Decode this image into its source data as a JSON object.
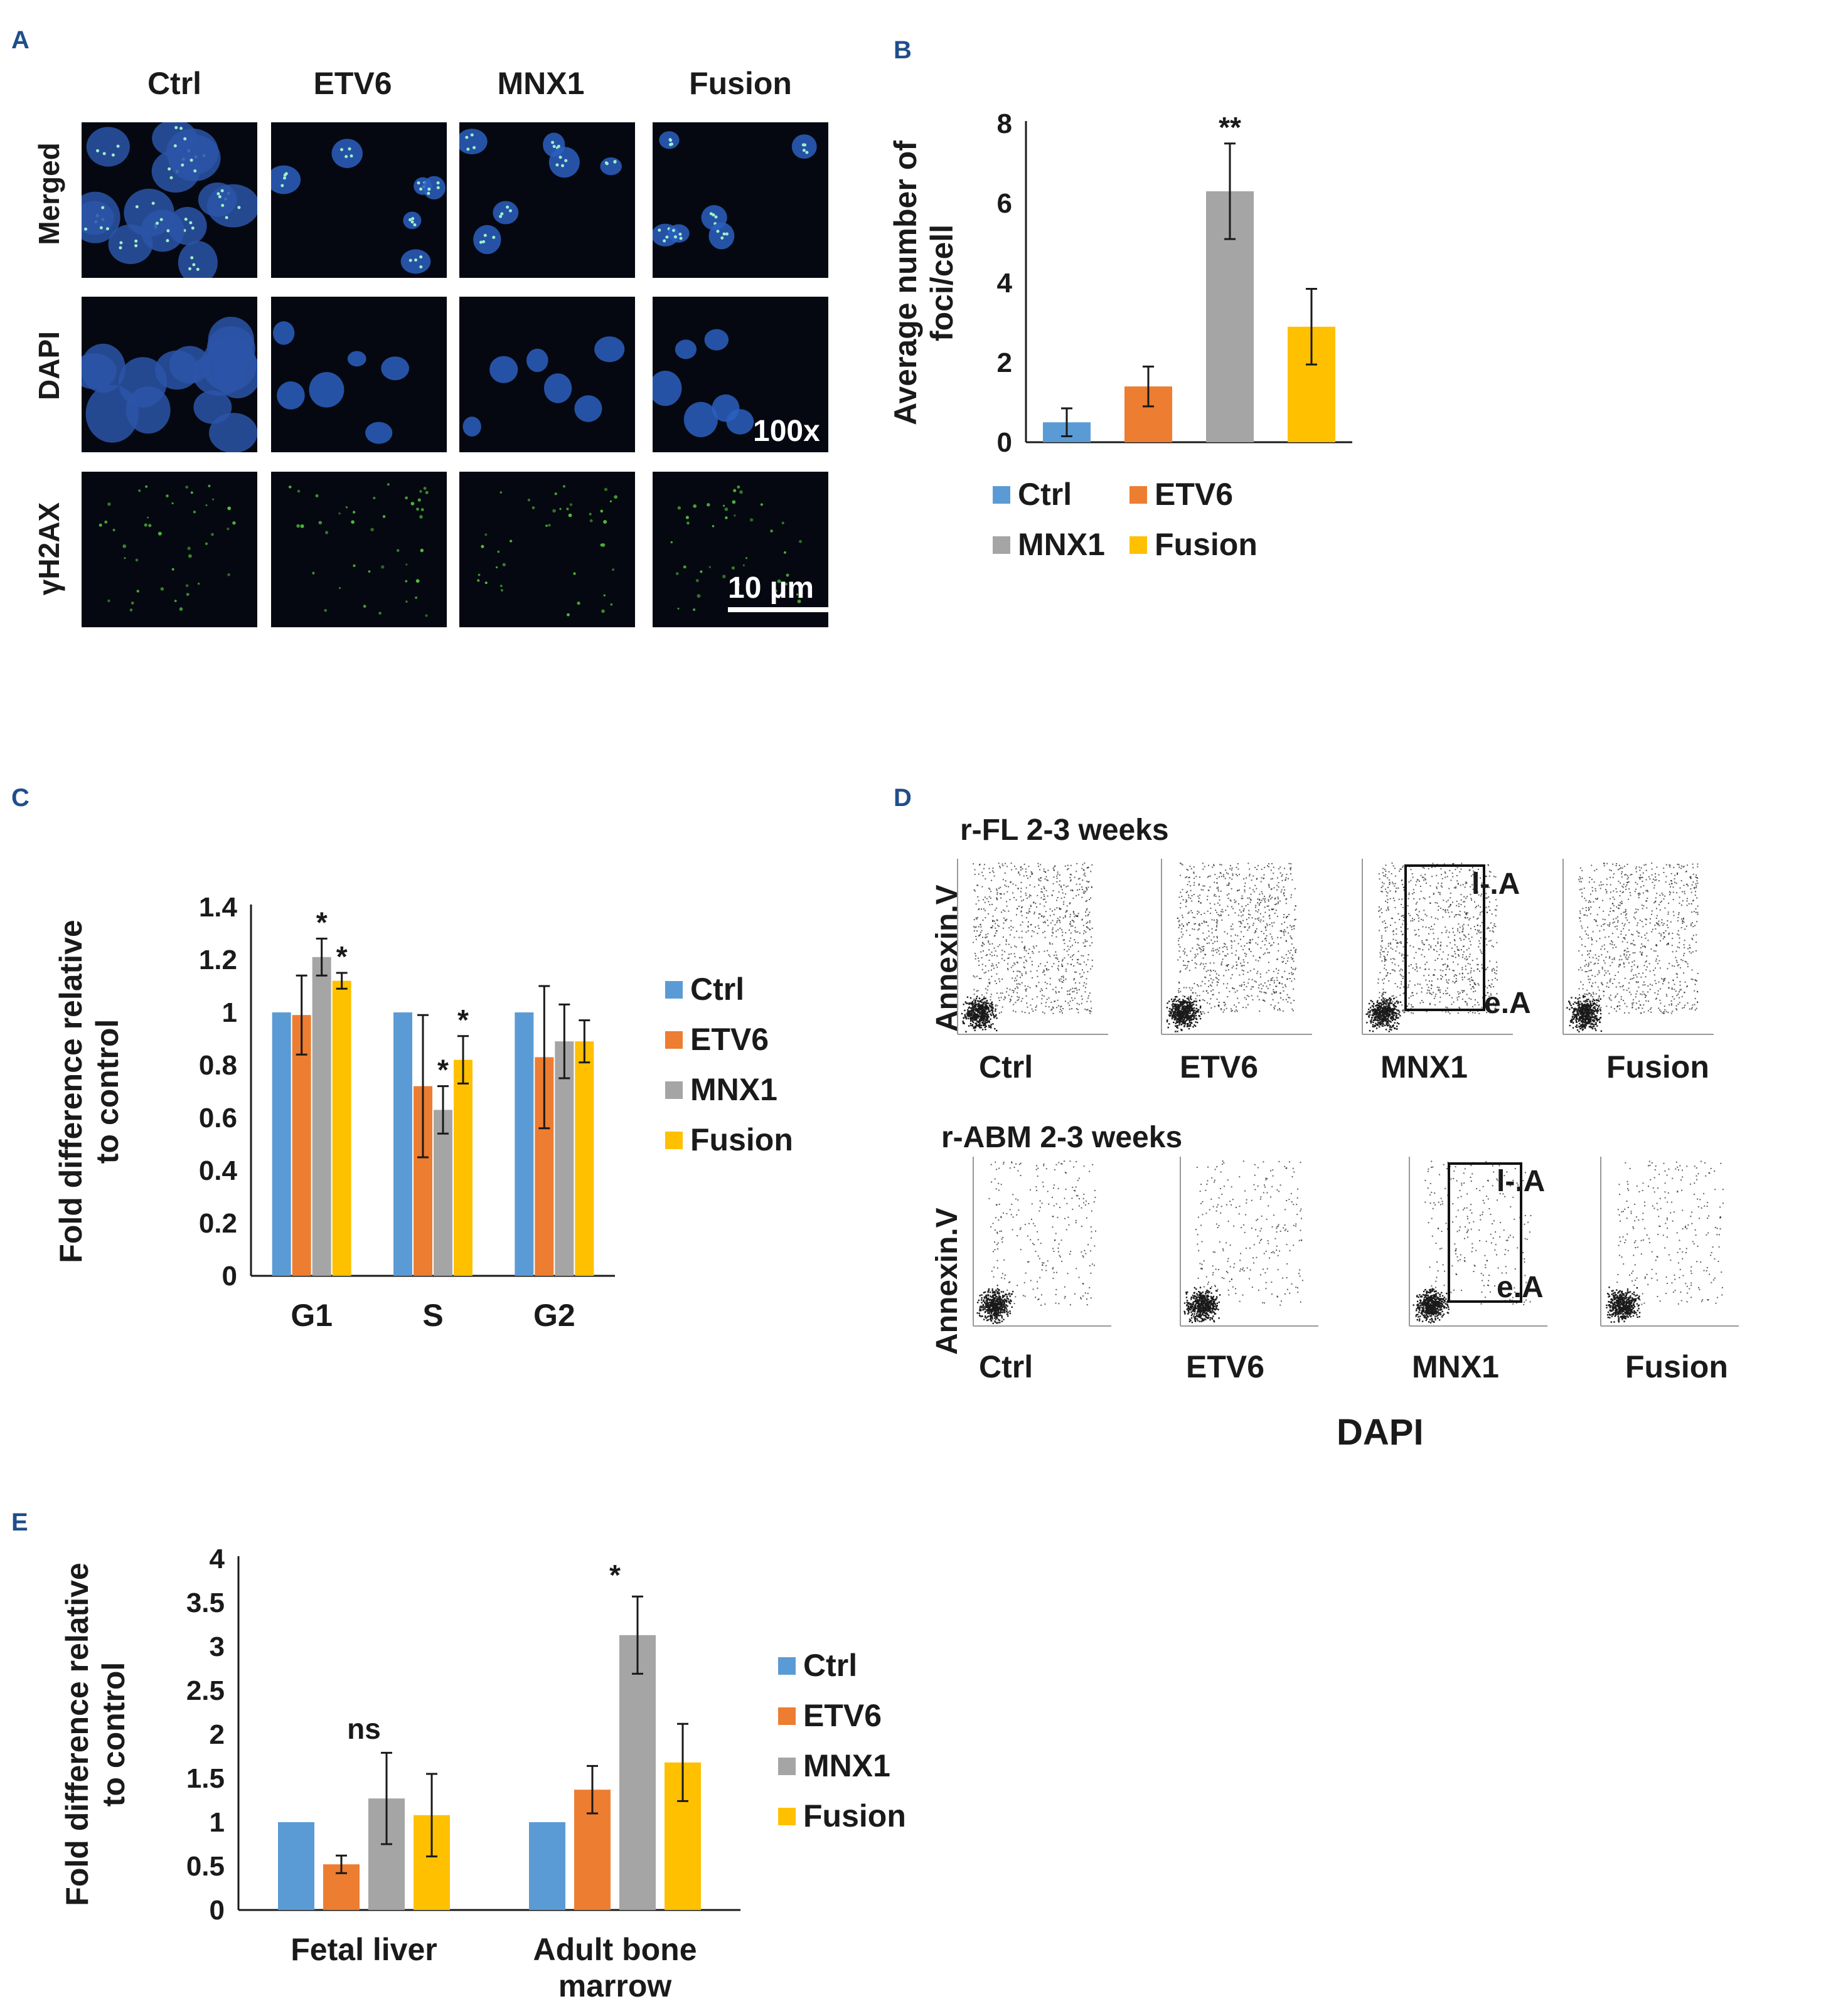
{
  "panels": {
    "A": {
      "letter": "A",
      "columns": [
        "Ctrl",
        "ETV6",
        "MNX1",
        "Fusion"
      ],
      "rows": [
        "Merged",
        "DAPI",
        "γH2AX"
      ],
      "magnification": "100x",
      "scale_bar": "10 µm"
    },
    "B": {
      "letter": "B"
    },
    "C": {
      "letter": "C"
    },
    "D": {
      "letter": "D",
      "top_title": "r-FL 2-3 weeks",
      "bottom_title": "r-ABM 2-3 weeks",
      "y_label": "Annexin.V",
      "x_label": "DAPI",
      "top_samples": [
        "Ctrl",
        "ETV6",
        "MNX1",
        "Fusion"
      ],
      "bottom_samples": [
        "Ctrl",
        "ETV6",
        "MNX1",
        "Fusion"
      ],
      "gate_late": "l-.A",
      "gate_early": "e.A"
    },
    "E": {
      "letter": "E"
    }
  },
  "colors": {
    "Ctrl": "#5b9bd5",
    "ETV6": "#ed7d31",
    "MNX1": "#a5a5a5",
    "Fusion": "#ffc000"
  },
  "chart_data": [
    {
      "id": "B",
      "type": "bar",
      "categories": [
        "Ctrl",
        "ETV6",
        "MNX1",
        "Fusion"
      ],
      "values": [
        0.5,
        1.4,
        6.3,
        2.9
      ],
      "errors": [
        0.35,
        0.5,
        1.2,
        0.95
      ],
      "annotations": [
        "",
        "",
        "**",
        ""
      ],
      "ylabel": "Average number of foci/cell",
      "ylabel_lines": [
        "Average number of",
        "foci/cell"
      ],
      "ylim": [
        0,
        8
      ],
      "yticks": [
        "0",
        "2",
        "4",
        "6",
        "8"
      ],
      "legend": [
        "Ctrl",
        "ETV6",
        "MNX1",
        "Fusion"
      ],
      "legend_position": "bottom"
    },
    {
      "id": "C",
      "type": "bar",
      "categories": [
        "G1",
        "S",
        "G2"
      ],
      "series": [
        {
          "name": "Ctrl",
          "values": [
            1.0,
            1.0,
            1.0
          ],
          "errors": [
            0,
            0,
            0
          ],
          "annotations": [
            "",
            "",
            ""
          ]
        },
        {
          "name": "ETV6",
          "values": [
            0.99,
            0.72,
            0.83
          ],
          "errors": [
            0.15,
            0.27,
            0.27
          ],
          "annotations": [
            "",
            "",
            ""
          ]
        },
        {
          "name": "MNX1",
          "values": [
            1.21,
            0.63,
            0.89
          ],
          "errors": [
            0.07,
            0.09,
            0.14
          ],
          "annotations": [
            "*",
            "*",
            ""
          ]
        },
        {
          "name": "Fusion",
          "values": [
            1.12,
            0.82,
            0.89
          ],
          "errors": [
            0.03,
            0.09,
            0.08
          ],
          "annotations": [
            "*",
            "*",
            ""
          ]
        }
      ],
      "ylabel": "Fold difference relative to control",
      "ylabel_lines": [
        "Fold difference relative",
        "to control"
      ],
      "ylim": [
        0,
        1.4
      ],
      "yticks": [
        "0",
        "0.2",
        "0.4",
        "0.6",
        "0.8",
        "1",
        "1.2",
        "1.4"
      ],
      "legend_position": "right"
    },
    {
      "id": "E",
      "type": "bar",
      "categories": [
        "Fetal liver",
        "Adult bone marrow"
      ],
      "category_lines": [
        [
          "Fetal liver"
        ],
        [
          "Adult bone",
          "marrow"
        ]
      ],
      "series": [
        {
          "name": "Ctrl",
          "values": [
            1.0,
            1.0
          ],
          "errors": [
            0,
            0
          ]
        },
        {
          "name": "ETV6",
          "values": [
            0.52,
            1.37
          ],
          "errors": [
            0.1,
            0.27
          ]
        },
        {
          "name": "MNX1",
          "values": [
            1.27,
            3.13
          ],
          "errors": [
            0.52,
            0.44
          ]
        },
        {
          "name": "Fusion",
          "values": [
            1.08,
            1.68
          ],
          "errors": [
            0.47,
            0.44
          ]
        }
      ],
      "group_annotations": [
        {
          "text": "ns",
          "category": 0,
          "y": 1.95
        },
        {
          "text": "*",
          "category": 1,
          "y": 3.7
        }
      ],
      "ylabel": "Fold difference relative to control",
      "ylabel_lines": [
        "Fold difference relative",
        "to control"
      ],
      "ylim": [
        0,
        4
      ],
      "yticks": [
        "0",
        "0.5",
        "1",
        "1.5",
        "2",
        "2.5",
        "3",
        "3.5",
        "4"
      ],
      "legend_position": "right"
    }
  ]
}
